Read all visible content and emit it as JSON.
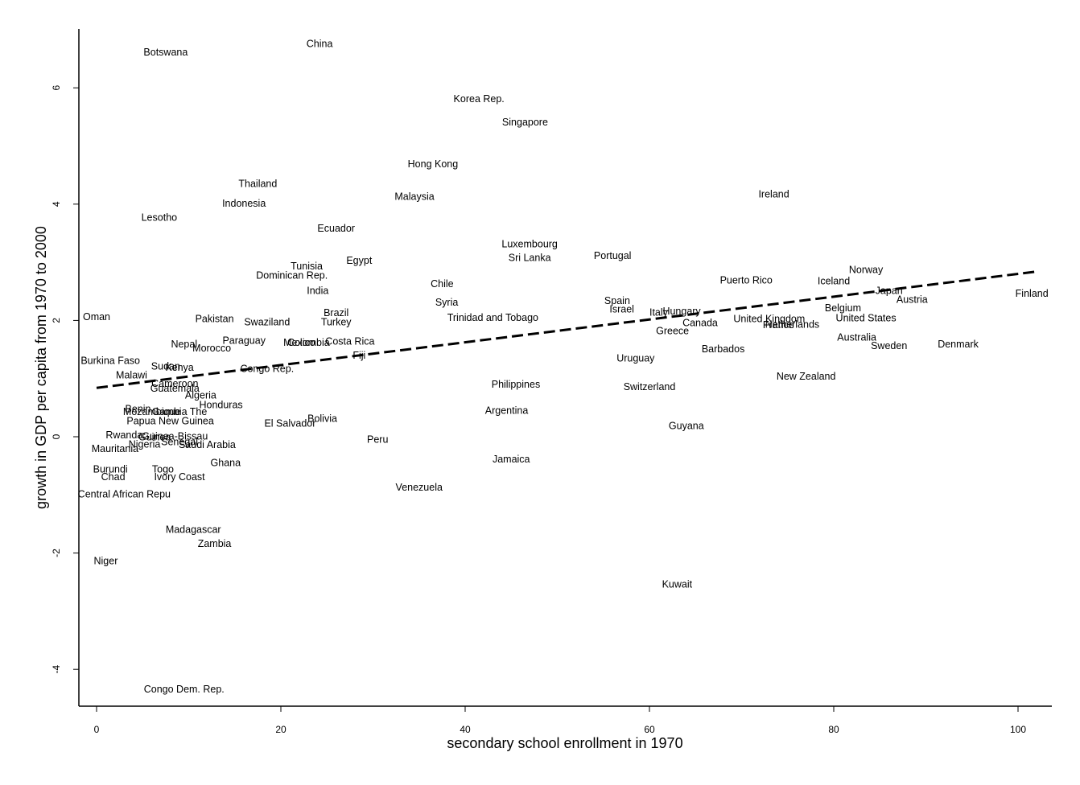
{
  "chart_data": {
    "type": "scatter",
    "title": "",
    "xlabel": "secondary school enrollment in 1970",
    "ylabel": "growth in GDP per capita from 1970 to 2000",
    "xlim": [
      -2,
      104
    ],
    "ylim": [
      -4.6,
      7.0
    ],
    "xticks": [
      0,
      20,
      40,
      60,
      80,
      100
    ],
    "yticks": [
      -4,
      -2,
      0,
      2,
      4,
      6
    ],
    "grid": false,
    "legend": "none",
    "marker": "text-label",
    "fit_line": {
      "style": "dashed",
      "x": [
        0,
        102
      ],
      "y": [
        0.84,
        2.84
      ]
    },
    "points": [
      {
        "label": "Botswana",
        "x": 7.5,
        "y": 6.6
      },
      {
        "label": "China",
        "x": 24.2,
        "y": 6.75
      },
      {
        "label": "Korea Rep.",
        "x": 41.5,
        "y": 5.8
      },
      {
        "label": "Singapore",
        "x": 46.5,
        "y": 5.4
      },
      {
        "label": "Hong Kong",
        "x": 36.5,
        "y": 4.68
      },
      {
        "label": "Thailand",
        "x": 17.5,
        "y": 4.34
      },
      {
        "label": "Indonesia",
        "x": 16.0,
        "y": 4.0
      },
      {
        "label": "Malaysia",
        "x": 34.5,
        "y": 4.12
      },
      {
        "label": "Ireland",
        "x": 73.5,
        "y": 4.16
      },
      {
        "label": "Lesotho",
        "x": 6.8,
        "y": 3.76
      },
      {
        "label": "Ecuador",
        "x": 26.0,
        "y": 3.57
      },
      {
        "label": "Luxembourg",
        "x": 47.0,
        "y": 3.3
      },
      {
        "label": "Sri Lanka",
        "x": 47.0,
        "y": 3.07
      },
      {
        "label": "Portugal",
        "x": 56.0,
        "y": 3.1
      },
      {
        "label": "Egypt",
        "x": 28.5,
        "y": 3.02
      },
      {
        "label": "Tunisia",
        "x": 22.8,
        "y": 2.92
      },
      {
        "label": "Dominican Rep.",
        "x": 21.2,
        "y": 2.76
      },
      {
        "label": "Norway",
        "x": 83.5,
        "y": 2.86
      },
      {
        "label": "Chile",
        "x": 37.5,
        "y": 2.62
      },
      {
        "label": "Puerto Rico",
        "x": 70.5,
        "y": 2.68
      },
      {
        "label": "Iceland",
        "x": 80.0,
        "y": 2.67
      },
      {
        "label": "India",
        "x": 24.0,
        "y": 2.5
      },
      {
        "label": "Japan",
        "x": 86.0,
        "y": 2.5
      },
      {
        "label": "Finland",
        "x": 101.5,
        "y": 2.45
      },
      {
        "label": "Spain",
        "x": 56.5,
        "y": 2.33
      },
      {
        "label": "Syria",
        "x": 38.0,
        "y": 2.3
      },
      {
        "label": "Austria",
        "x": 88.5,
        "y": 2.35
      },
      {
        "label": "Israel",
        "x": 57.0,
        "y": 2.18
      },
      {
        "label": "Italy",
        "x": 61.0,
        "y": 2.13
      },
      {
        "label": "Hungary",
        "x": 63.5,
        "y": 2.15
      },
      {
        "label": "Belgium",
        "x": 81.0,
        "y": 2.2
      },
      {
        "label": "Brazil",
        "x": 26.0,
        "y": 2.12
      },
      {
        "label": "Oman",
        "x": 0.0,
        "y": 2.05
      },
      {
        "label": "Pakistan",
        "x": 12.8,
        "y": 2.02
      },
      {
        "label": "Trinidad and Tobago",
        "x": 43.0,
        "y": 2.04
      },
      {
        "label": "United Kingdom",
        "x": 73.0,
        "y": 2.02
      },
      {
        "label": "United States",
        "x": 83.5,
        "y": 2.03
      },
      {
        "label": "Swaziland",
        "x": 18.5,
        "y": 1.96
      },
      {
        "label": "Turkey",
        "x": 26.0,
        "y": 1.96
      },
      {
        "label": "Canada",
        "x": 65.5,
        "y": 1.95
      },
      {
        "label": "Netherlands",
        "x": 75.5,
        "y": 1.92
      },
      {
        "label": "France",
        "x": 74.0,
        "y": 1.91
      },
      {
        "label": "Greece",
        "x": 62.5,
        "y": 1.81
      },
      {
        "label": "Australia",
        "x": 82.5,
        "y": 1.7
      },
      {
        "label": "Paraguay",
        "x": 16.0,
        "y": 1.64
      },
      {
        "label": "Mexico",
        "x": 22.0,
        "y": 1.61
      },
      {
        "label": "Colombia",
        "x": 23.0,
        "y": 1.61
      },
      {
        "label": "Costa Rica",
        "x": 27.5,
        "y": 1.63
      },
      {
        "label": "Nepal",
        "x": 9.5,
        "y": 1.58
      },
      {
        "label": "Morocco",
        "x": 12.5,
        "y": 1.51
      },
      {
        "label": "Sweden",
        "x": 86.0,
        "y": 1.55
      },
      {
        "label": "Denmark",
        "x": 93.5,
        "y": 1.58
      },
      {
        "label": "Barbados",
        "x": 68.0,
        "y": 1.5
      },
      {
        "label": "Fiji",
        "x": 28.5,
        "y": 1.39
      },
      {
        "label": "Burkina Faso",
        "x": 1.5,
        "y": 1.3
      },
      {
        "label": "Uruguay",
        "x": 58.5,
        "y": 1.34
      },
      {
        "label": "Sudan",
        "x": 7.5,
        "y": 1.2
      },
      {
        "label": "Kenya",
        "x": 9.0,
        "y": 1.18
      },
      {
        "label": "Congo Rep.",
        "x": 18.5,
        "y": 1.16
      },
      {
        "label": "Malawi",
        "x": 3.8,
        "y": 1.05
      },
      {
        "label": "New Zealand",
        "x": 77.0,
        "y": 1.03
      },
      {
        "label": "Cameroon",
        "x": 8.5,
        "y": 0.9
      },
      {
        "label": "Philippines",
        "x": 45.5,
        "y": 0.89
      },
      {
        "label": "Guatemala",
        "x": 8.5,
        "y": 0.82
      },
      {
        "label": "Switzerland",
        "x": 60.0,
        "y": 0.85
      },
      {
        "label": "Algeria",
        "x": 11.3,
        "y": 0.7
      },
      {
        "label": "Honduras",
        "x": 13.5,
        "y": 0.54
      },
      {
        "label": "Benin",
        "x": 4.5,
        "y": 0.47
      },
      {
        "label": "Mozambique",
        "x": 6.0,
        "y": 0.42
      },
      {
        "label": "Gambia The",
        "x": 9.0,
        "y": 0.42
      },
      {
        "label": "Argentina",
        "x": 44.5,
        "y": 0.44
      },
      {
        "label": "Bolivia",
        "x": 24.5,
        "y": 0.3
      },
      {
        "label": "Papua New Guinea",
        "x": 8.0,
        "y": 0.26
      },
      {
        "label": "El Salvador",
        "x": 21.0,
        "y": 0.22
      },
      {
        "label": "Guyana",
        "x": 64.0,
        "y": 0.18
      },
      {
        "label": "Rwanda",
        "x": 3.0,
        "y": 0.02
      },
      {
        "label": "Guinea-Bissau",
        "x": 8.5,
        "y": 0.0
      },
      {
        "label": "Guinea",
        "x": 6.3,
        "y": -0.02
      },
      {
        "label": "Peru",
        "x": 30.5,
        "y": -0.06
      },
      {
        "label": "Senegal",
        "x": 9.0,
        "y": -0.1
      },
      {
        "label": "Nigeria",
        "x": 5.2,
        "y": -0.14
      },
      {
        "label": "Saudi Arabia",
        "x": 12.0,
        "y": -0.15
      },
      {
        "label": "Mauritania",
        "x": 2.0,
        "y": -0.22
      },
      {
        "label": "Jamaica",
        "x": 45.0,
        "y": -0.4
      },
      {
        "label": "Ghana",
        "x": 14.0,
        "y": -0.46
      },
      {
        "label": "Burundi",
        "x": 1.5,
        "y": -0.57
      },
      {
        "label": "Togo",
        "x": 7.2,
        "y": -0.57
      },
      {
        "label": "Chad",
        "x": 1.8,
        "y": -0.7
      },
      {
        "label": "Ivory Coast",
        "x": 9.0,
        "y": -0.7
      },
      {
        "label": "Venezuela",
        "x": 35.0,
        "y": -0.88
      },
      {
        "label": "Central African Repu",
        "x": 3.0,
        "y": -1.0
      },
      {
        "label": "Madagascar",
        "x": 10.5,
        "y": -1.61
      },
      {
        "label": "Zambia",
        "x": 12.8,
        "y": -1.85
      },
      {
        "label": "Niger",
        "x": 1.0,
        "y": -2.15
      },
      {
        "label": "Kuwait",
        "x": 63.0,
        "y": -2.55
      },
      {
        "label": "Congo Dem. Rep.",
        "x": 9.5,
        "y": -4.35
      }
    ]
  }
}
